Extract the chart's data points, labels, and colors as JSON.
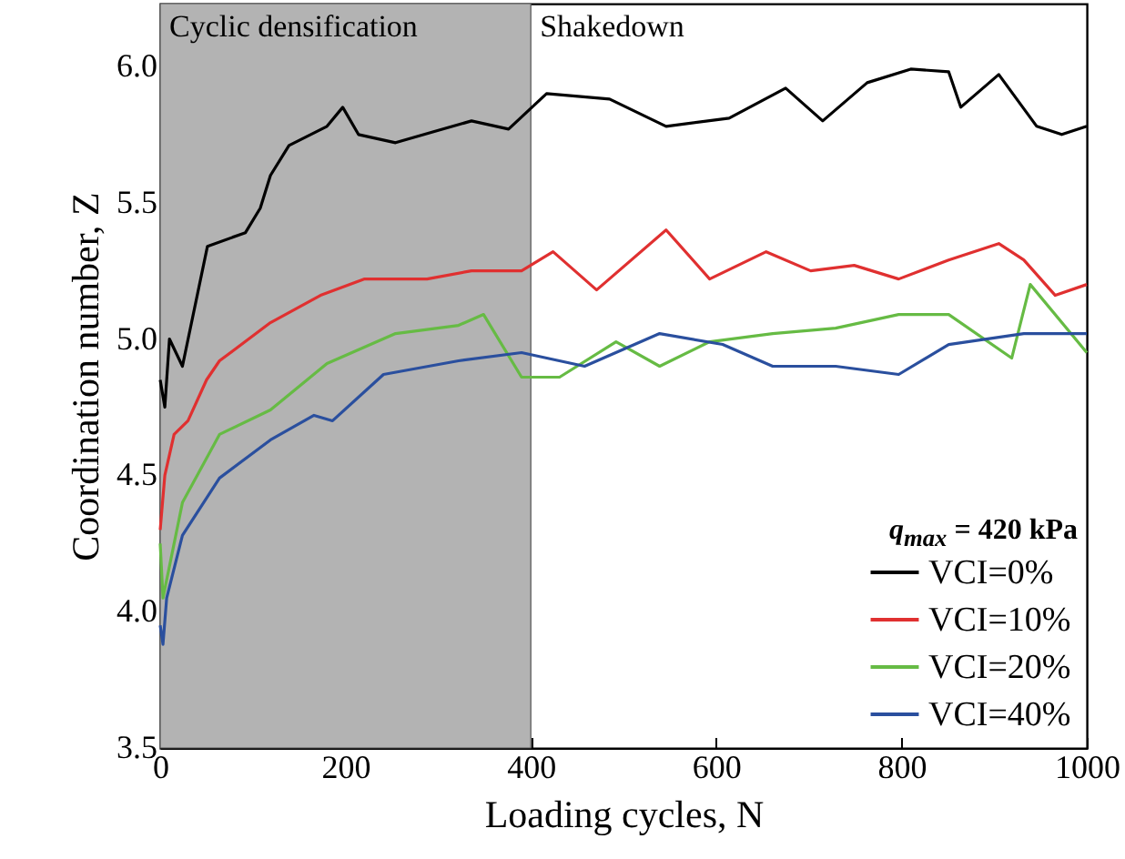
{
  "chart_data": {
    "type": "line",
    "xlabel": "Loading cycles, N",
    "ylabel": "Coordination number, Z",
    "xlim": [
      0,
      1000
    ],
    "xticks": [
      0,
      200,
      400,
      600,
      800,
      1000
    ],
    "ylim": [
      3.5,
      6.23
    ],
    "yticks": [
      3.5,
      {
        "value": 3.75,
        "label": null
      },
      {
        "value": 4,
        "label": "4.0"
      },
      {
        "value": 4.25,
        "label": null
      },
      4.5,
      {
        "value": 4.75,
        "label": null
      },
      {
        "value": 5,
        "label": "5.0"
      },
      {
        "value": 5.25,
        "label": null
      },
      5.5,
      {
        "value": 5.75,
        "label": null
      },
      {
        "value": 6,
        "label": "6.0"
      }
    ],
    "grid": false,
    "legend": "bottom right",
    "line_style": "solid",
    "bands": [
      {
        "axis": "x",
        "from": 0,
        "to": 400,
        "label": "Cyclic densification",
        "color": "#b3b3b3"
      }
    ],
    "annotations": [
      {
        "text": "Shakedown",
        "x": 400
      },
      "q$_{max}$ = 420 kPa"
    ],
    "series": [
      {
        "name": "VCI=0%",
        "color": "#000000",
        "x": [
          0,
          5,
          10,
          24,
          51,
          92,
          108,
          119,
          139,
          180,
          197,
          214,
          254,
          295,
          336,
          376,
          417,
          485,
          546,
          614,
          675,
          715,
          763,
          810,
          851,
          864,
          905,
          946,
          973,
          1000
        ],
        "values": [
          4.85,
          4.75,
          5.0,
          4.9,
          5.34,
          5.39,
          5.48,
          5.6,
          5.71,
          5.78,
          5.85,
          5.75,
          5.72,
          5.76,
          5.8,
          5.77,
          5.9,
          5.88,
          5.78,
          5.81,
          5.92,
          5.8,
          5.94,
          5.99,
          5.98,
          5.85,
          5.97,
          5.78,
          5.75,
          5.78
        ]
      },
      {
        "name": "VCI=10%",
        "color": "#e03030",
        "x": [
          0,
          5,
          15,
          30,
          50,
          64,
          119,
          173,
          220,
          288,
          336,
          390,
          424,
          471,
          546,
          593,
          654,
          702,
          749,
          797,
          851,
          905,
          932,
          966,
          1000
        ],
        "values": [
          4.3,
          4.5,
          4.65,
          4.7,
          4.85,
          4.92,
          5.06,
          5.16,
          5.22,
          5.22,
          5.25,
          5.25,
          5.32,
          5.18,
          5.4,
          5.22,
          5.32,
          5.25,
          5.27,
          5.22,
          5.29,
          5.35,
          5.29,
          5.16,
          5.2
        ]
      },
      {
        "name": "VCI=20%",
        "color": "#66bb44",
        "x": [
          0,
          3,
          24,
          64,
          119,
          180,
          254,
          322,
          349,
          390,
          431,
          492,
          539,
          593,
          661,
          729,
          797,
          851,
          919,
          939,
          1000
        ],
        "values": [
          4.25,
          4.05,
          4.4,
          4.65,
          4.74,
          4.91,
          5.02,
          5.05,
          5.09,
          4.86,
          4.86,
          4.99,
          4.9,
          4.99,
          5.02,
          5.04,
          5.09,
          5.09,
          4.93,
          5.2,
          4.95
        ]
      },
      {
        "name": "VCI=40%",
        "color": "#2a4f9e",
        "x": [
          0,
          3,
          7,
          24,
          64,
          119,
          166,
          186,
          241,
          322,
          390,
          458,
          539,
          607,
          661,
          729,
          797,
          851,
          932,
          1000
        ],
        "values": [
          3.95,
          3.88,
          4.05,
          4.28,
          4.49,
          4.63,
          4.72,
          4.7,
          4.87,
          4.92,
          4.95,
          4.9,
          5.02,
          4.98,
          4.9,
          4.9,
          4.87,
          4.98,
          5.02,
          5.02
        ]
      }
    ]
  }
}
